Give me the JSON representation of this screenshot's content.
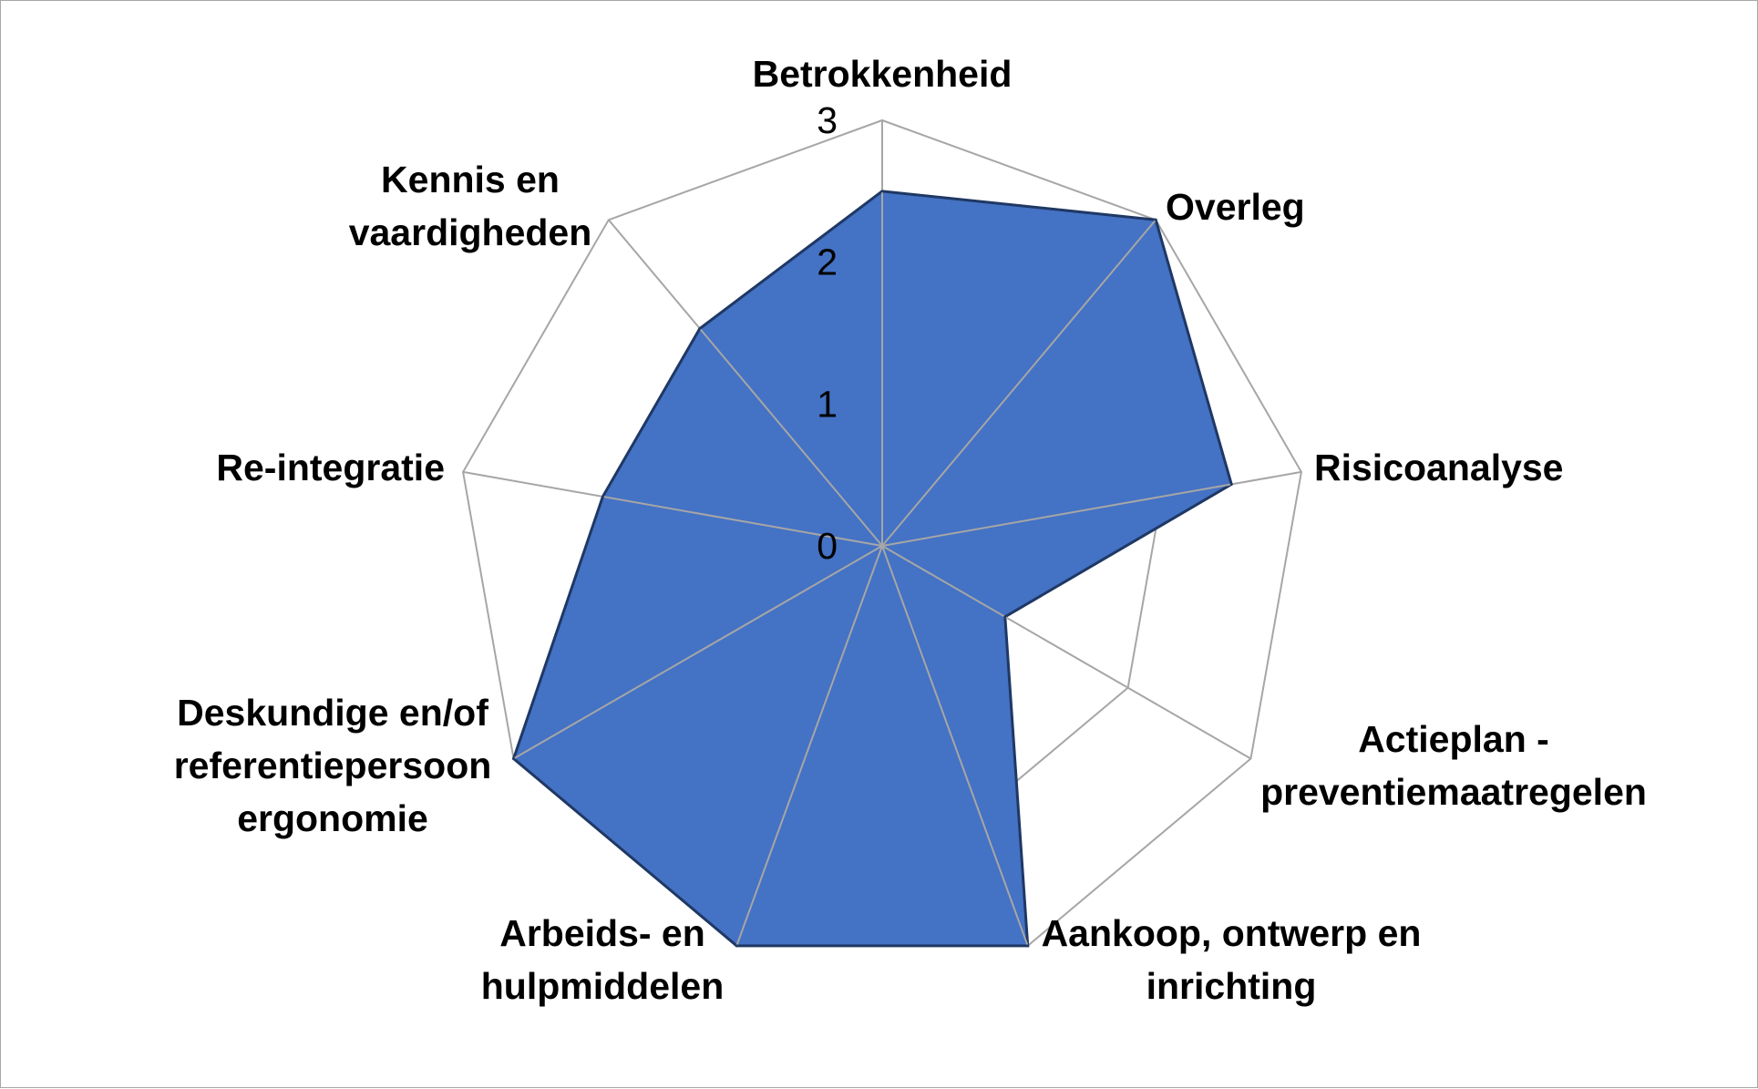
{
  "chart_data": {
    "type": "radar",
    "categories": [
      [
        "Betrokkenheid"
      ],
      [
        "Overleg"
      ],
      [
        "Risicoanalyse"
      ],
      [
        "Actieplan -",
        "preventiemaatregelen"
      ],
      [
        "Aankoop, ontwerp en",
        "inrichting"
      ],
      [
        "Arbeids- en",
        "hulpmiddelen"
      ],
      [
        "Deskundige en/of",
        "referentiepersoon",
        "ergonomie"
      ],
      [
        "Re-integratie"
      ],
      [
        "Kennis en",
        "vaardigheden"
      ]
    ],
    "values": [
      2.5,
      3,
      2.5,
      1,
      3,
      3,
      3,
      2,
      2
    ],
    "rlim": [
      0,
      3
    ],
    "ticks": [
      "0",
      "1",
      "2",
      "3"
    ],
    "grid": true,
    "fill_color": "#4472c4",
    "line_color": "#1f3864",
    "grid_color": "#a6a6a6",
    "legend": "none"
  }
}
